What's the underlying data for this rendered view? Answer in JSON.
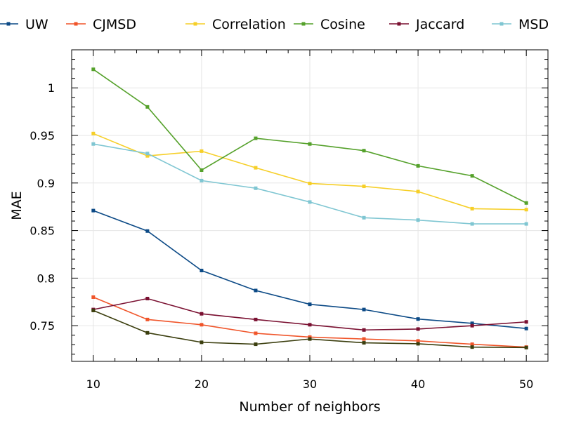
{
  "chart_data": {
    "type": "line",
    "title": "",
    "xlabel": "Number of neighbors",
    "ylabel": "MAE",
    "x": [
      10,
      15,
      20,
      25,
      30,
      35,
      40,
      45,
      50
    ],
    "xlim": [
      8,
      52
    ],
    "ylim": [
      0.7125,
      1.04
    ],
    "xticks": [
      10,
      20,
      30,
      40,
      50
    ],
    "xtick_labels": [
      "10",
      "20",
      "30",
      "40",
      "50"
    ],
    "yticks": [
      0.75,
      0.8,
      0.85,
      0.9,
      0.95,
      1.0
    ],
    "ytick_labels": [
      "0.75",
      "0.8",
      "0.85",
      "0.9",
      "0.95",
      "1"
    ],
    "grid": true,
    "legend_position": "top",
    "series": [
      {
        "name": "UW",
        "color": "#0c4a86",
        "values": [
          0.871,
          0.8495,
          0.808,
          0.787,
          0.7725,
          0.767,
          0.757,
          0.7525,
          0.747
        ]
      },
      {
        "name": "CJMSD",
        "color": "#f0552a",
        "values": [
          0.78,
          0.7565,
          0.751,
          0.742,
          0.738,
          0.736,
          0.734,
          0.7305,
          0.7275
        ]
      },
      {
        "name": "Correlation",
        "color": "#f6cf28",
        "values": [
          0.952,
          0.9285,
          0.9335,
          0.916,
          0.8995,
          0.8965,
          0.891,
          0.873,
          0.872
        ]
      },
      {
        "name": "Cosine",
        "color": "#55a12b",
        "values": [
          1.0195,
          0.98,
          0.9135,
          0.947,
          0.941,
          0.934,
          0.918,
          0.9075,
          0.879
        ]
      },
      {
        "name": "Jaccard",
        "color": "#7a1031",
        "values": [
          0.767,
          0.7785,
          0.7625,
          0.7565,
          0.751,
          0.7455,
          0.7465,
          0.75,
          0.754
        ]
      },
      {
        "name": "MSD",
        "color": "#7fc6d2",
        "values": [
          0.941,
          0.931,
          0.9025,
          0.8945,
          0.88,
          0.8635,
          0.861,
          0.857,
          0.857
        ]
      },
      {
        "color": "#3b3e0e",
        "values": [
          0.766,
          0.7425,
          0.7325,
          0.7305,
          0.736,
          0.732,
          0.731,
          0.7275,
          0.727
        ]
      }
    ]
  }
}
